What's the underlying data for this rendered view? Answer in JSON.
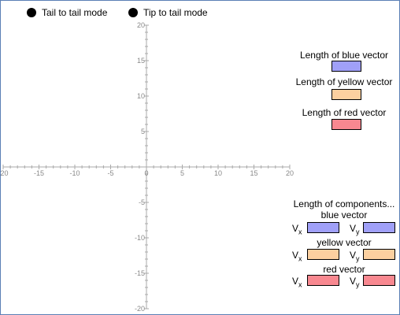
{
  "modes": {
    "tail_to_tail": "Tail to tail mode",
    "tip_to_tail": "Tip to tail mode"
  },
  "axes": {
    "x_ticks": [
      "-20",
      "-15",
      "-10",
      "-5",
      "0",
      "5",
      "10",
      "15",
      "20"
    ],
    "y_ticks": [
      "20",
      "15",
      "10",
      "5",
      "-5",
      "-10",
      "-15",
      "-20"
    ]
  },
  "lengths": {
    "blue": "Length of blue vector",
    "yellow": "Length of yellow vector",
    "red": "Length of red  vector"
  },
  "components": {
    "title": "Length of components...",
    "blue": "blue vector",
    "yellow": "yellow vector",
    "red": "red vector",
    "vx": "V",
    "vy": "V",
    "x_sub": "x",
    "y_sub": "y"
  },
  "colors": {
    "blue": "#a0a0f8",
    "yellow": "#fcd0a0",
    "red": "#f88890",
    "axis": "#aaaaaa",
    "tick_label": "#888888"
  }
}
